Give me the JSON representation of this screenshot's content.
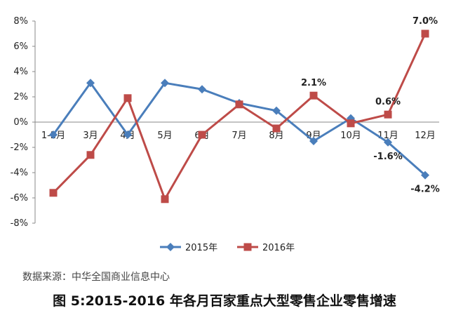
{
  "chart_data": {
    "type": "line",
    "categories": [
      "1-2月",
      "3月",
      "4月",
      "5月",
      "6月",
      "7月",
      "8月",
      "9月",
      "10月",
      "11月",
      "12月"
    ],
    "series": [
      {
        "name": "2015年",
        "color": "#4a7ebb",
        "marker": "diamond",
        "values": [
          -1.0,
          3.1,
          -1.0,
          3.1,
          2.6,
          1.5,
          0.9,
          -1.5,
          0.3,
          -1.6,
          -4.2
        ]
      },
      {
        "name": "2016年",
        "color": "#be4b48",
        "marker": "square",
        "values": [
          -5.6,
          -2.6,
          1.9,
          -6.1,
          -1.0,
          1.4,
          -0.5,
          2.1,
          -0.1,
          0.6,
          7.0
        ]
      }
    ],
    "ylim": [
      -8,
      8
    ],
    "yticks": [
      "8%",
      "6%",
      "4%",
      "2%",
      "0%",
      "-2%",
      "-4%",
      "-6%",
      "-8%"
    ],
    "grid": false,
    "legend_position": "bottom",
    "data_labels": [
      {
        "series": 1,
        "index": 7,
        "text": "2.1%"
      },
      {
        "series": 1,
        "index": 9,
        "text": "0.6%"
      },
      {
        "series": 1,
        "index": 10,
        "text": "7.0%"
      },
      {
        "series": 0,
        "index": 9,
        "text": "-1.6%"
      },
      {
        "series": 0,
        "index": 10,
        "text": "-4.2%"
      }
    ]
  },
  "source": "数据来源：中华全国商业信息中心",
  "caption": "图 5:2015-2016 年各月百家重点大型零售企业零售增速"
}
